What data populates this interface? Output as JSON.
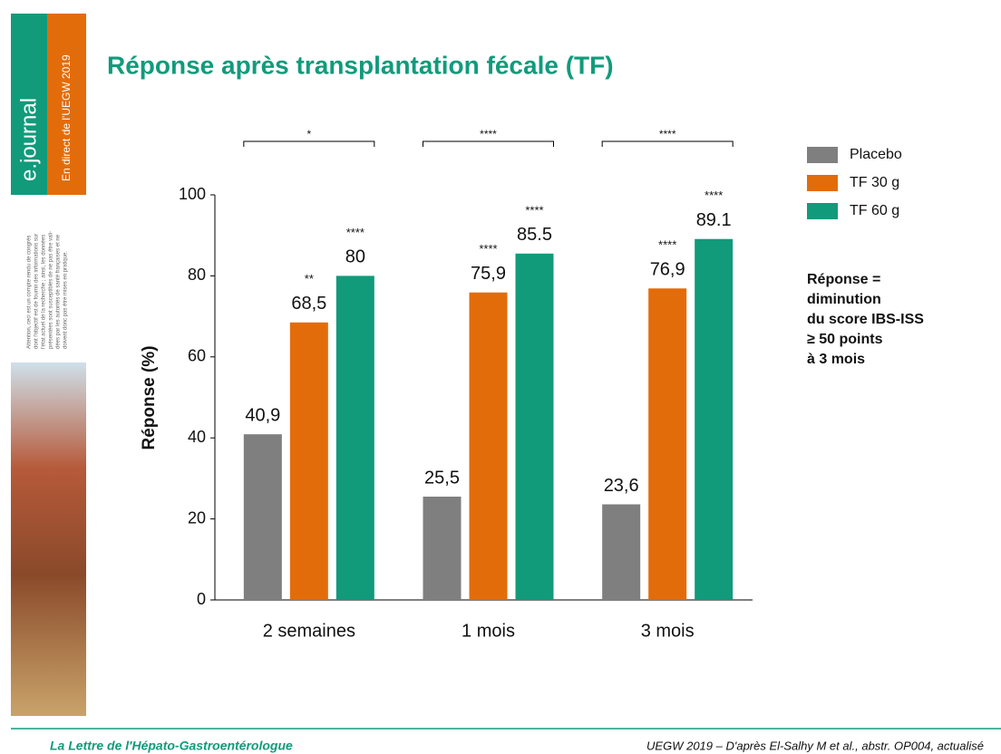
{
  "sidebar": {
    "brand": "e.journal",
    "tagline": "En direct de l'UEGW 2019",
    "disclaimer": [
      "Attention, ceci est un compte rendu de congrès",
      "dont l'objectif est de fournir des informations sur",
      "l'état actuel de la recherche ; ainsi, les données",
      "présentées sont susceptibles de ne pas être vali-",
      "dées par les autorités de santé françaises et ne",
      "doivent donc pas être mises en pratique."
    ]
  },
  "chart_data": {
    "type": "bar",
    "title": "Réponse après transplantation fécale (TF)",
    "y_label": "Réponse (%)",
    "categories": [
      "2 semaines",
      "1 mois",
      "3 mois"
    ],
    "brackets": [
      "*",
      "****",
      "****"
    ],
    "series": [
      {
        "name": "Placebo",
        "color": "#7f7f7f",
        "values": [
          40.9,
          25.5,
          23.6
        ],
        "value_labels": [
          "40,9",
          "25,5",
          "23,6"
        ]
      },
      {
        "name": "TF 30 g",
        "color": "#e36c0a",
        "values": [
          68.5,
          75.9,
          76.9
        ],
        "value_labels": [
          "68,5",
          "75,9",
          "76,9"
        ],
        "stars": [
          "**",
          "****",
          "****"
        ]
      },
      {
        "name": "TF 60 g",
        "color": "#119b7b",
        "values": [
          80,
          85.5,
          89.1
        ],
        "stars": [
          "****",
          "****",
          "****"
        ]
      }
    ],
    "ylim": [
      0,
      100
    ],
    "yticks": [
      0,
      20,
      40,
      60,
      80,
      100
    ],
    "legend": "right",
    "note": [
      "Réponse =",
      "diminution",
      "du score IBS-ISS",
      "≥ 50 points",
      "à 3 mois"
    ]
  },
  "footer": {
    "journal": "La Lettre de l'Hépato-Gastroentérologue",
    "source": "UEGW 2019 – D'après El-Salhy M et al., abstr. OP004, actualisé"
  }
}
